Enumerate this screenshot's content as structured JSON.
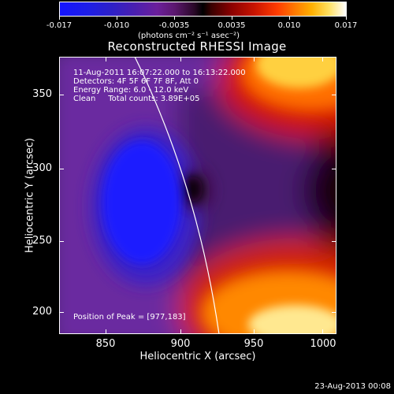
{
  "colorbar": {
    "ticks": [
      "-0.017",
      "-0.010",
      "-0.0035",
      "0.0035",
      "0.010",
      "0.017"
    ],
    "units": "(photons cm⁻² s⁻¹ asec⁻²)"
  },
  "plot": {
    "title": "Reconstructed RHESSI Image",
    "info_lines": [
      "11-Aug-2011 16:07:22.000 to 16:13:22.000",
      "Detectors: 4F 5F 6F 7F 8F, Att 0",
      "Energy Range: 6.0 - 12.0 keV",
      "Clean     Total counts: 3.89E+05"
    ],
    "peak_text": "Position of Peak = [977,183]",
    "x_ticks": [
      "850",
      "900",
      "950",
      "1000"
    ],
    "y_ticks": [
      "350",
      "300",
      "250",
      "200"
    ],
    "xlabel": "Heliocentric X (arcsec)",
    "ylabel": "Heliocentric Y (arcsec)"
  },
  "footer": {
    "timestamp": "23-Aug-2013 00:08"
  },
  "colors": {
    "background": "#000000",
    "limb": "#ffffff"
  }
}
